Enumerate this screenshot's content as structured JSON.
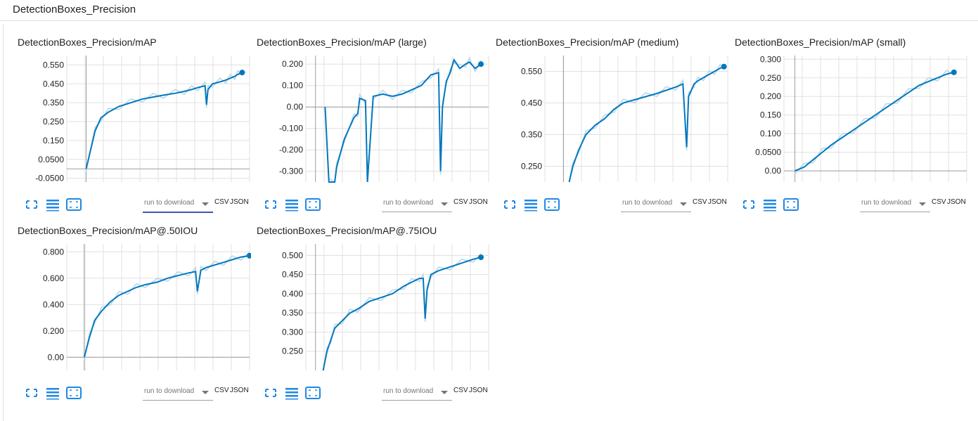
{
  "header": {
    "title": "DetectionBoxes_Precision"
  },
  "download": {
    "placeholder": "run to download",
    "csv": "CSV",
    "json": "JSON"
  },
  "colors": {
    "line": "#0277bd",
    "smoothed_light": "#b3d7ec",
    "axis": "#9e9e9e",
    "grid": "#e0e0e0",
    "accent": "#3f51b5"
  },
  "icons": [
    "fullscreen-icon",
    "log-scale-list-icon",
    "fit-domain-icon"
  ],
  "chart_data": [
    {
      "type": "line",
      "title": "DetectionBoxes_Precision/mAP",
      "yticks": [
        "0.550",
        "0.450",
        "0.350",
        "0.250",
        "0.150",
        "0.0500",
        "-0.0500"
      ],
      "ylim": [
        -0.07,
        0.6
      ],
      "xlim": [
        -0.13,
        1.1
      ],
      "y": [
        0,
        0.2,
        0.27,
        0.3,
        0.33,
        0.35,
        0.37,
        0.38,
        0.39,
        0.4,
        0.41,
        0.42,
        0.43,
        0.44,
        0.34,
        0.42,
        0.45,
        0.46,
        0.47,
        0.48,
        0.49,
        0.5,
        0.51
      ],
      "x": [
        0,
        0.06,
        0.1,
        0.15,
        0.22,
        0.3,
        0.38,
        0.45,
        0.52,
        0.6,
        0.66,
        0.71,
        0.75,
        0.8,
        0.81,
        0.82,
        0.85,
        0.9,
        0.94,
        0.97,
        1.0,
        1.02,
        1.05
      ]
    },
    {
      "type": "line",
      "title": "DetectionBoxes_Precision/mAP (large)",
      "yticks": [
        "0.200",
        "0.100",
        "0.00",
        "-0.100",
        "-0.200",
        "-0.300"
      ],
      "ylim": [
        -0.35,
        0.24
      ],
      "xlim": [
        -0.05,
        0.9
      ],
      "y": [
        0,
        -0.35,
        -0.35,
        -0.28,
        -0.15,
        -0.05,
        -0.03,
        0.04,
        0.03,
        -0.35,
        0.05,
        0.06,
        0.05,
        0.06,
        0.08,
        0.1,
        0.15,
        0.16,
        -0.3,
        0.0,
        0.12,
        0.16,
        0.22,
        0.18,
        0.2,
        0.21,
        0.18,
        0.2
      ],
      "x": [
        0.05,
        0.07,
        0.1,
        0.11,
        0.15,
        0.2,
        0.22,
        0.23,
        0.26,
        0.27,
        0.3,
        0.35,
        0.4,
        0.45,
        0.5,
        0.55,
        0.6,
        0.64,
        0.65,
        0.66,
        0.68,
        0.7,
        0.72,
        0.75,
        0.78,
        0.8,
        0.83,
        0.86
      ]
    },
    {
      "type": "line",
      "title": "DetectionBoxes_Precision/mAP (medium)",
      "yticks": [
        "0.550",
        "0.450",
        "0.350",
        "0.250"
      ],
      "ylim": [
        0.2,
        0.6
      ],
      "xlim": [
        -0.1,
        0.88
      ],
      "y": [
        0.2,
        0.25,
        0.3,
        0.35,
        0.38,
        0.4,
        0.43,
        0.45,
        0.46,
        0.47,
        0.48,
        0.49,
        0.5,
        0.51,
        0.31,
        0.47,
        0.51,
        0.52,
        0.53,
        0.54,
        0.55,
        0.56,
        0.565
      ],
      "x": [
        0.03,
        0.05,
        0.08,
        0.12,
        0.17,
        0.22,
        0.27,
        0.32,
        0.38,
        0.44,
        0.5,
        0.55,
        0.6,
        0.64,
        0.66,
        0.67,
        0.7,
        0.72,
        0.75,
        0.78,
        0.81,
        0.84,
        0.86
      ]
    },
    {
      "type": "line",
      "title": "DetectionBoxes_Precision/mAP (small)",
      "yticks": [
        "0.300",
        "0.250",
        "0.200",
        "0.150",
        "0.100",
        "0.0500",
        "0.00"
      ],
      "ylim": [
        -0.03,
        0.31
      ],
      "xlim": [
        -0.06,
        0.94
      ],
      "y": [
        0,
        0.01,
        0.03,
        0.05,
        0.07,
        0.09,
        0.11,
        0.13,
        0.15,
        0.17,
        0.19,
        0.21,
        0.23,
        0.24,
        0.25,
        0.26,
        0.265
      ],
      "x": [
        0,
        0.05,
        0.1,
        0.15,
        0.2,
        0.26,
        0.32,
        0.38,
        0.44,
        0.5,
        0.56,
        0.62,
        0.68,
        0.73,
        0.78,
        0.83,
        0.87
      ]
    },
    {
      "type": "line",
      "title": "DetectionBoxes_Precision/mAP@.50IOU",
      "yticks": [
        "0.800",
        "0.600",
        "0.400",
        "0.200",
        "0.00"
      ],
      "ylim": [
        -0.1,
        0.86
      ],
      "xlim": [
        -0.1,
        0.95
      ],
      "y": [
        0,
        0.15,
        0.28,
        0.35,
        0.42,
        0.47,
        0.5,
        0.53,
        0.55,
        0.57,
        0.6,
        0.62,
        0.64,
        0.65,
        0.5,
        0.66,
        0.68,
        0.7,
        0.72,
        0.74,
        0.76,
        0.77
      ],
      "x": [
        0,
        0.03,
        0.06,
        0.1,
        0.15,
        0.2,
        0.25,
        0.3,
        0.35,
        0.42,
        0.48,
        0.54,
        0.6,
        0.64,
        0.65,
        0.67,
        0.7,
        0.75,
        0.8,
        0.85,
        0.9,
        0.95
      ]
    },
    {
      "type": "line",
      "title": "DetectionBoxes_Precision/mAP@.75IOU",
      "yticks": [
        "0.500",
        "0.450",
        "0.400",
        "0.350",
        "0.300",
        "0.250"
      ],
      "ylim": [
        0.2,
        0.53
      ],
      "xlim": [
        -0.05,
        0.9
      ],
      "y": [
        0.2,
        0.25,
        0.28,
        0.31,
        0.33,
        0.35,
        0.36,
        0.38,
        0.39,
        0.4,
        0.42,
        0.43,
        0.44,
        0.44,
        0.335,
        0.41,
        0.45,
        0.46,
        0.47,
        0.48,
        0.49,
        0.495
      ],
      "x": [
        0.04,
        0.06,
        0.08,
        0.1,
        0.14,
        0.18,
        0.22,
        0.28,
        0.34,
        0.4,
        0.46,
        0.5,
        0.54,
        0.56,
        0.57,
        0.58,
        0.6,
        0.64,
        0.7,
        0.76,
        0.82,
        0.86
      ]
    }
  ]
}
